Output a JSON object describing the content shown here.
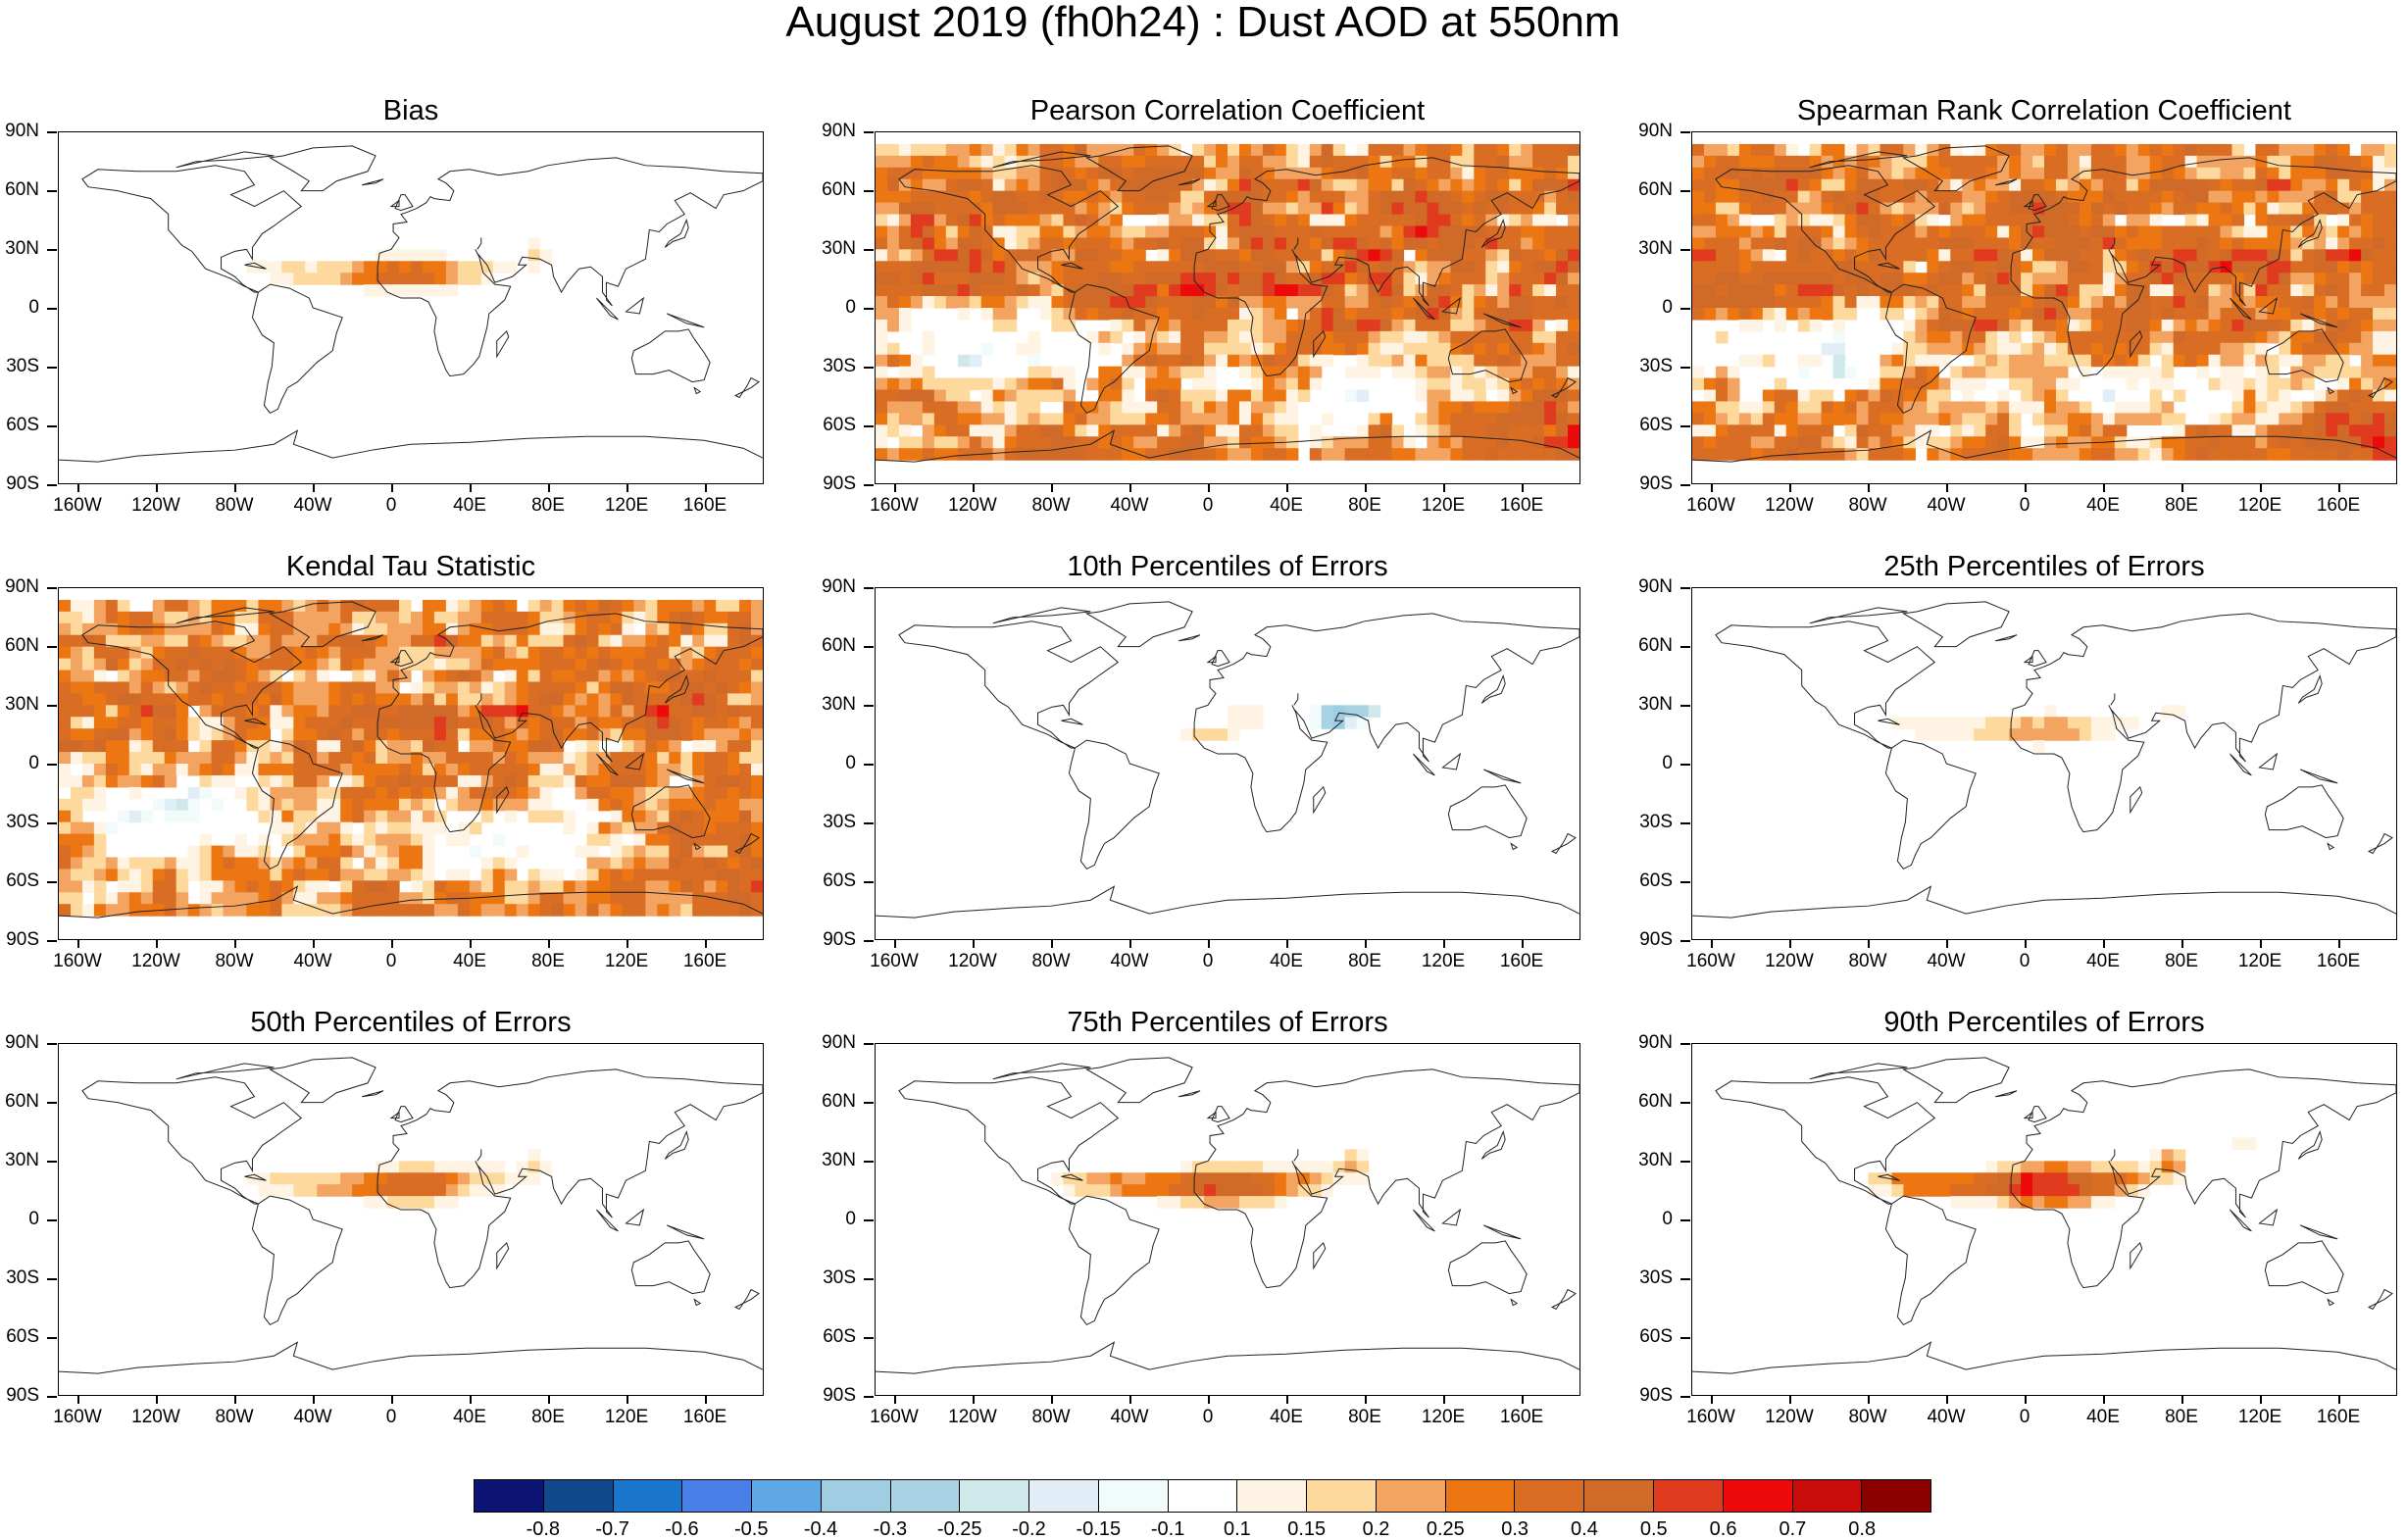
{
  "title": "August 2019 (fh0h24) : Dust AOD at 550nm",
  "lat_labels": [
    "90N",
    "60N",
    "30N",
    "0",
    "30S",
    "60S",
    "90S"
  ],
  "lon_labels": [
    "160W",
    "120W",
    "80W",
    "40W",
    "0",
    "40E",
    "80E",
    "120E",
    "160E"
  ],
  "panels": [
    {
      "title": "Bias",
      "pattern": "sahara_plume",
      "intensity": 0.55
    },
    {
      "title": "Pearson Correlation Coefficient",
      "pattern": "correlation",
      "intensity": 1.0
    },
    {
      "title": "Spearman Rank Correlation Coefficient",
      "pattern": "correlation",
      "intensity": 0.95
    },
    {
      "title": "Kendal Tau Statistic",
      "pattern": "correlation",
      "intensity": 0.7
    },
    {
      "title": "10th Percentiles of Errors",
      "pattern": "negative_mideast",
      "intensity": 0.5
    },
    {
      "title": "25th Percentiles of Errors",
      "pattern": "sahara_light",
      "intensity": 0.4
    },
    {
      "title": "50th Percentiles of Errors",
      "pattern": "sahara_plume",
      "intensity": 0.6
    },
    {
      "title": "75th Percentiles of Errors",
      "pattern": "sahara_plume",
      "intensity": 0.8
    },
    {
      "title": "90th Percentiles of Errors",
      "pattern": "sahara_plume",
      "intensity": 1.0
    }
  ],
  "colorbar": {
    "colors": [
      "#0d1473",
      "#114a8c",
      "#1a75cc",
      "#4a7fe8",
      "#5ea8e6",
      "#9fcde2",
      "#a9d2e5",
      "#cfe9ea",
      "#e1eef8",
      "#f2fbfc",
      "#ffffff",
      "#fff4e3",
      "#fdd99e",
      "#f3a461",
      "#ec7712",
      "#d96d24",
      "#cf6a28",
      "#e03b1e",
      "#ec0a0a",
      "#c80b0b",
      "#8c0000"
    ],
    "labels": [
      "-0.8",
      "-0.7",
      "-0.6",
      "-0.5",
      "-0.4",
      "-0.3",
      "-0.25",
      "-0.2",
      "-0.15",
      "-0.1",
      "0.1",
      "0.15",
      "0.2",
      "0.25",
      "0.3",
      "0.4",
      "0.5",
      "0.6",
      "0.7",
      "0.8"
    ]
  }
}
